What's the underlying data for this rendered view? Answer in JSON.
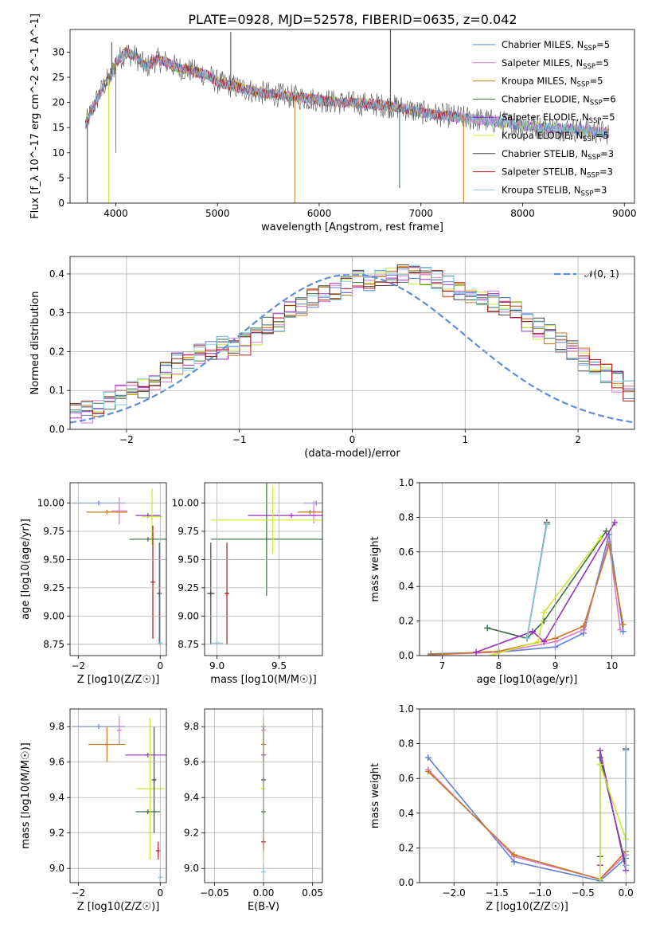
{
  "figure_title": "PLATE=0928, MJD=52578, FIBERID=0635, z=0.042",
  "series": [
    {
      "name": "Chabrier MILES",
      "nssp": "5",
      "color": "#5b7fd6"
    },
    {
      "name": "Salpeter MILES",
      "nssp": "5",
      "color": "#e07ad0"
    },
    {
      "name": "Kroupa MILES",
      "nssp": "5",
      "color": "#c87820"
    },
    {
      "name": "Chabrier ELODIE",
      "nssp": "6",
      "color": "#3a6e46"
    },
    {
      "name": "Salpeter ELODIE",
      "nssp": "5",
      "color": "#9a2fc7"
    },
    {
      "name": "Kroupa ELODIE",
      "nssp": "5",
      "color": "#cde830"
    },
    {
      "name": "Chabrier STELIB",
      "nssp": "3",
      "color": "#444444"
    },
    {
      "name": "Salpeter STELIB",
      "nssp": "3",
      "color": "#b01818"
    },
    {
      "name": "Kroupa STELIB",
      "nssp": "3",
      "color": "#7fd0e0"
    }
  ],
  "chart_data": [
    {
      "id": "spectrum",
      "type": "line",
      "title": "PLATE=0928, MJD=52578, FIBERID=0635, z=0.042",
      "xlabel": "wavelength [Angstrom, rest frame]",
      "ylabel": "Flux [f_λ 10^-17 erg cm^-2 s^-1 A^-1]",
      "xlim": [
        3550,
        9100
      ],
      "ylim": [
        0,
        34.5
      ],
      "xticks": [
        4000,
        5000,
        6000,
        7000,
        8000,
        9000
      ],
      "yticks": [
        0,
        5,
        10,
        15,
        20,
        25,
        30
      ],
      "legend": "top-right",
      "data_envelope": {
        "x": [
          3700,
          3800,
          3900,
          3950,
          4000,
          4100,
          4200,
          4300,
          4400,
          4500,
          4600,
          4700,
          4800,
          4900,
          5000,
          5200,
          5400,
          5600,
          5800,
          6000,
          6200,
          6400,
          6600,
          6800,
          7000,
          7200,
          7400,
          7600,
          7800,
          8000,
          8200,
          8400,
          8600,
          8800
        ],
        "y": [
          15.5,
          20,
          24,
          25,
          28,
          30,
          29,
          27,
          28.5,
          28,
          27,
          26.5,
          26,
          25.5,
          24,
          23,
          22,
          21.5,
          21,
          20.5,
          20,
          19.8,
          19.5,
          19,
          18,
          17.5,
          17,
          16.5,
          16,
          15.5,
          15,
          14.8,
          14.5,
          14
        ]
      }
    },
    {
      "id": "residuals",
      "type": "histogram",
      "xlabel": "(data-model)/error",
      "ylabel": "Normed distribution",
      "xlim": [
        -2.5,
        2.5
      ],
      "ylim": [
        0,
        0.445
      ],
      "xticks": [
        -2,
        -1,
        0,
        1,
        2
      ],
      "yticks": [
        0.0,
        0.1,
        0.2,
        0.3,
        0.4
      ],
      "legend": "top-right",
      "reference_curve": "𝒩(0, 1)",
      "bin_width": 0.1,
      "bin_start": -2.5,
      "profile": [
        0.04,
        0.045,
        0.05,
        0.07,
        0.09,
        0.1,
        0.11,
        0.13,
        0.15,
        0.17,
        0.17,
        0.19,
        0.2,
        0.21,
        0.22,
        0.22,
        0.24,
        0.26,
        0.28,
        0.3,
        0.32,
        0.34,
        0.35,
        0.36,
        0.37,
        0.38,
        0.38,
        0.39,
        0.39,
        0.4,
        0.4,
        0.39,
        0.38,
        0.37,
        0.36,
        0.35,
        0.34,
        0.33,
        0.32,
        0.3,
        0.28,
        0.26,
        0.24,
        0.22,
        0.2,
        0.18,
        0.16,
        0.14,
        0.12,
        0.1,
        0.09,
        0.08,
        0.07,
        0.06,
        0.05,
        0.045,
        0.04
      ]
    },
    {
      "id": "age_vs_Z",
      "type": "scatter",
      "xlabel": "Z [log10(Z/Z☉)]",
      "ylabel": "age [log10(age/yr)]",
      "xlim": [
        -2.2,
        0.15
      ],
      "ylim": [
        8.65,
        10.18
      ],
      "xticks": [
        -2,
        0
      ],
      "yticks": [
        8.75,
        9.0,
        9.25,
        9.5,
        9.75,
        10.0
      ],
      "points": [
        {
          "s": 0,
          "x": -1.5,
          "y": 10.0,
          "ex": 0.65,
          "ey": 0.0
        },
        {
          "s": 1,
          "x": -1.0,
          "y": 9.93,
          "ex": 0.2,
          "ey": 0.12
        },
        {
          "s": 2,
          "x": -1.3,
          "y": 9.92,
          "ex": 0.5,
          "ey": 0.0
        },
        {
          "s": 3,
          "x": -0.3,
          "y": 9.68,
          "ex": 0.45,
          "ey": 0.0
        },
        {
          "s": 4,
          "x": -0.3,
          "y": 9.89,
          "ex": 0.3,
          "ey": 0.0
        },
        {
          "s": 5,
          "x": -0.2,
          "y": 9.88,
          "ex": 0.25,
          "ey": 0.25
        },
        {
          "s": 6,
          "x": -0.02,
          "y": 9.2,
          "ex": 0.02,
          "ey": 0.45
        },
        {
          "s": 7,
          "x": -0.18,
          "y": 9.3,
          "ex": 0.0,
          "ey": 0.5
        },
        {
          "s": 8,
          "x": 0.0,
          "y": 8.76,
          "ex": 0.05,
          "ey": 0.0
        }
      ]
    },
    {
      "id": "age_vs_mass",
      "type": "scatter",
      "xlabel": "mass [log10(M/M☉)]",
      "ylabel": "",
      "xlim": [
        8.9,
        9.85
      ],
      "ylim": [
        8.65,
        10.18
      ],
      "xticks": [
        9.0,
        9.5
      ],
      "yticks": [
        8.75,
        9.0,
        9.25,
        9.5,
        9.75,
        10.0
      ],
      "points": [
        {
          "s": 0,
          "x": 9.8,
          "y": 10.0,
          "ex": 0.1,
          "ey": 0.0
        },
        {
          "s": 1,
          "x": 9.78,
          "y": 9.92,
          "ex": 0.05,
          "ey": 0.1
        },
        {
          "s": 2,
          "x": 9.75,
          "y": 9.92,
          "ex": 0.1,
          "ey": 0.0
        },
        {
          "s": 3,
          "x": 9.4,
          "y": 9.68,
          "ex": 0.45,
          "ey": 0.5
        },
        {
          "s": 4,
          "x": 9.6,
          "y": 9.89,
          "ex": 0.35,
          "ey": 0.0
        },
        {
          "s": 5,
          "x": 9.45,
          "y": 9.85,
          "ex": 0.5,
          "ey": 0.3
        },
        {
          "s": 6,
          "x": 8.95,
          "y": 9.2,
          "ex": 0.03,
          "ey": 0.45
        },
        {
          "s": 7,
          "x": 9.08,
          "y": 9.2,
          "ex": 0.0,
          "ey": 0.45
        },
        {
          "s": 8,
          "x": 9.0,
          "y": 8.76,
          "ex": 0.05,
          "ey": 0.0
        }
      ]
    },
    {
      "id": "mass_weight_vs_age",
      "type": "line",
      "xlabel": "age [log10(age/yr)]",
      "ylabel": "mass weight",
      "xlim": [
        6.6,
        10.4
      ],
      "ylim": [
        0,
        1.0
      ],
      "xticks": [
        7,
        8,
        9,
        10
      ],
      "yticks": [
        0.0,
        0.2,
        0.4,
        0.6,
        0.8,
        1.0
      ],
      "lines": [
        {
          "s": 0,
          "x": [
            6.8,
            8.0,
            9.0,
            9.5,
            9.95,
            10.2
          ],
          "y": [
            0.01,
            0.02,
            0.05,
            0.13,
            0.7,
            0.14
          ]
        },
        {
          "s": 1,
          "x": [
            6.8,
            8.0,
            9.0,
            9.5,
            9.95,
            10.15
          ],
          "y": [
            0.005,
            0.02,
            0.08,
            0.15,
            0.66,
            0.15
          ]
        },
        {
          "s": 2,
          "x": [
            6.8,
            8.0,
            9.0,
            9.5,
            9.95,
            10.2
          ],
          "y": [
            0.005,
            0.025,
            0.1,
            0.17,
            0.64,
            0.18
          ]
        },
        {
          "s": 3,
          "x": [
            7.8,
            8.5,
            8.8,
            9.9
          ],
          "y": [
            0.16,
            0.1,
            0.2,
            0.72
          ]
        },
        {
          "s": 4,
          "x": [
            7.6,
            8.6,
            8.8,
            10.05
          ],
          "y": [
            0.02,
            0.14,
            0.08,
            0.77
          ]
        },
        {
          "s": 5,
          "x": [
            7.9,
            8.7,
            8.8,
            9.8
          ],
          "y": [
            0.005,
            0.08,
            0.25,
            0.68
          ]
        },
        {
          "s": 6,
          "x": [
            8.5,
            8.85
          ],
          "y": [
            0.1,
            0.77
          ]
        },
        {
          "s": 7,
          "x": [
            8.5,
            8.85
          ],
          "y": [
            0.1,
            0.76
          ]
        },
        {
          "s": 8,
          "x": [
            8.5,
            8.85
          ],
          "y": [
            0.1,
            0.76
          ]
        }
      ]
    },
    {
      "id": "mass_vs_Z",
      "type": "scatter",
      "xlabel": "Z [log10(Z/Z☉)]",
      "ylabel": "mass [log10(M/M☉)]",
      "xlim": [
        -2.2,
        0.15
      ],
      "ylim": [
        8.92,
        9.9
      ],
      "xticks": [
        -2,
        0
      ],
      "yticks": [
        9.0,
        9.2,
        9.4,
        9.6,
        9.8
      ],
      "points": [
        {
          "s": 0,
          "x": -1.5,
          "y": 9.8,
          "ex": 0.65,
          "ey": 0.0
        },
        {
          "s": 1,
          "x": -1.0,
          "y": 9.78,
          "ex": 0.05,
          "ey": 0.08
        },
        {
          "s": 2,
          "x": -1.3,
          "y": 9.7,
          "ex": 0.45,
          "ey": 0.1
        },
        {
          "s": 3,
          "x": -0.3,
          "y": 9.32,
          "ex": 0.3,
          "ey": 0.0
        },
        {
          "s": 4,
          "x": -0.3,
          "y": 9.64,
          "ex": 0.55,
          "ey": 0.0
        },
        {
          "s": 5,
          "x": -0.25,
          "y": 9.45,
          "ex": 0.35,
          "ey": 0.4
        },
        {
          "s": 6,
          "x": -0.15,
          "y": 9.5,
          "ex": 0.0,
          "ey": 0.3
        },
        {
          "s": 7,
          "x": -0.05,
          "y": 9.1,
          "ex": 0.0,
          "ey": 0.05
        },
        {
          "s": 8,
          "x": 0.0,
          "y": 8.95,
          "ex": 0.05,
          "ey": 0.05
        }
      ]
    },
    {
      "id": "mass_vs_ebv",
      "type": "scatter",
      "xlabel": "E(B-V)",
      "ylabel": "",
      "xlim": [
        -0.06,
        0.06
      ],
      "ylim": [
        8.92,
        9.9
      ],
      "xticks": [
        -0.05,
        0.0,
        0.05
      ],
      "yticks": [
        9.0,
        9.2,
        9.4,
        9.6,
        9.8
      ],
      "points": [
        {
          "s": 0,
          "x": 0.0,
          "y": 9.8,
          "ex": 0.0,
          "ey": 0.02
        },
        {
          "s": 1,
          "x": 0.0,
          "y": 9.78,
          "ex": 0.0,
          "ey": 0.08
        },
        {
          "s": 2,
          "x": 0.0,
          "y": 9.7,
          "ex": 0.0,
          "ey": 0.1
        },
        {
          "s": 3,
          "x": 0.0,
          "y": 9.32,
          "ex": 0.0,
          "ey": 0.0
        },
        {
          "s": 4,
          "x": 0.0,
          "y": 9.64,
          "ex": 0.0,
          "ey": 0.0
        },
        {
          "s": 5,
          "x": 0.0,
          "y": 9.45,
          "ex": 0.0,
          "ey": 0.4
        },
        {
          "s": 6,
          "x": 0.0,
          "y": 9.5,
          "ex": 0.0,
          "ey": 0.3
        },
        {
          "s": 7,
          "x": 0.0,
          "y": 9.15,
          "ex": 0.0,
          "ey": 0.05
        },
        {
          "s": 8,
          "x": 0.0,
          "y": 8.98,
          "ex": 0.0,
          "ey": 0.05
        }
      ]
    },
    {
      "id": "mass_weight_vs_Z",
      "type": "line",
      "xlabel": "Z [log10(Z/Z☉)]",
      "ylabel": "mass weight",
      "xlim": [
        -2.4,
        0.1
      ],
      "ylim": [
        0,
        1.0
      ],
      "xticks": [
        -2.0,
        -1.5,
        -1.0,
        -0.5,
        0.0
      ],
      "yticks": [
        0.0,
        0.2,
        0.4,
        0.6,
        0.8,
        1.0
      ],
      "lines": [
        {
          "s": 0,
          "x": [
            -2.3,
            -1.3,
            -0.3,
            0.0
          ],
          "y": [
            0.72,
            0.12,
            0.01,
            0.14
          ]
        },
        {
          "s": 1,
          "x": [
            -2.3,
            -1.3,
            -0.3,
            0.0
          ],
          "y": [
            0.65,
            0.15,
            0.02,
            0.16
          ]
        },
        {
          "s": 2,
          "x": [
            -2.3,
            -1.3,
            -0.3,
            0.0
          ],
          "y": [
            0.64,
            0.16,
            0.02,
            0.18
          ]
        },
        {
          "s": 3,
          "x": [
            -0.3,
            -0.3,
            0.0
          ],
          "y": [
            0.15,
            0.72,
            0.1
          ]
        },
        {
          "s": 4,
          "x": [
            -0.3,
            -0.3,
            0.0
          ],
          "y": [
            0.1,
            0.76,
            0.07
          ]
        },
        {
          "s": 5,
          "x": [
            -0.3,
            -0.3,
            0.0
          ],
          "y": [
            0.02,
            0.68,
            0.25
          ]
        },
        {
          "s": 6,
          "x": [
            0.0,
            0.0
          ],
          "y": [
            0.1,
            0.77
          ]
        },
        {
          "s": 7,
          "x": [
            0.0,
            0.0
          ],
          "y": [
            0.1,
            0.76
          ]
        },
        {
          "s": 8,
          "x": [
            0.0,
            0.0
          ],
          "y": [
            0.1,
            0.76
          ]
        }
      ]
    }
  ]
}
